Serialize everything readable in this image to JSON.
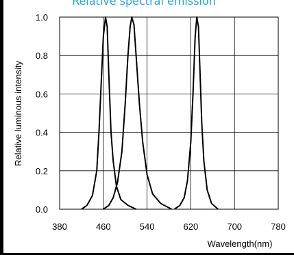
{
  "chart_data": {
    "type": "line",
    "title": "Relative spectral emission",
    "xlabel": "Wavelength(nm)",
    "ylabel": "Relative luminous intensity",
    "xlim": [
      380,
      780
    ],
    "ylim": [
      0,
      1.0
    ],
    "xticks": [
      "380",
      "460",
      "540",
      "620",
      "700",
      "780"
    ],
    "yticks": [
      "0.0",
      "0.2",
      "0.4",
      "0.6",
      "0.8",
      "1.0"
    ],
    "grid": true,
    "colors": {
      "title": "#29a3e0",
      "line": "#000000",
      "grid": "#000000"
    },
    "series": [
      {
        "peak": 465,
        "values": [
          [
            420,
            0
          ],
          [
            430,
            0.02
          ],
          [
            440,
            0.07
          ],
          [
            448,
            0.2
          ],
          [
            452,
            0.4
          ],
          [
            456,
            0.65
          ],
          [
            460,
            0.9
          ],
          [
            464,
            1.0
          ],
          [
            467,
            0.95
          ],
          [
            470,
            0.7
          ],
          [
            474,
            0.4
          ],
          [
            478,
            0.25
          ],
          [
            484,
            0.12
          ],
          [
            492,
            0.05
          ],
          [
            505,
            0.02
          ],
          [
            520,
            0
          ]
        ]
      },
      {
        "peak": 512,
        "values": [
          [
            460,
            0
          ],
          [
            470,
            0.02
          ],
          [
            478,
            0.06
          ],
          [
            486,
            0.14
          ],
          [
            494,
            0.3
          ],
          [
            500,
            0.55
          ],
          [
            505,
            0.8
          ],
          [
            509,
            0.95
          ],
          [
            512,
            1.0
          ],
          [
            516,
            0.96
          ],
          [
            520,
            0.8
          ],
          [
            526,
            0.55
          ],
          [
            532,
            0.35
          ],
          [
            540,
            0.18
          ],
          [
            550,
            0.08
          ],
          [
            565,
            0.03
          ],
          [
            585,
            0
          ]
        ]
      },
      {
        "peak": 632,
        "values": [
          [
            590,
            0
          ],
          [
            600,
            0.02
          ],
          [
            608,
            0.06
          ],
          [
            614,
            0.15
          ],
          [
            620,
            0.35
          ],
          [
            624,
            0.6
          ],
          [
            628,
            0.9
          ],
          [
            631,
            1.0
          ],
          [
            634,
            0.95
          ],
          [
            637,
            0.7
          ],
          [
            640,
            0.45
          ],
          [
            644,
            0.25
          ],
          [
            650,
            0.1
          ],
          [
            658,
            0.03
          ],
          [
            670,
            0
          ]
        ]
      }
    ]
  }
}
